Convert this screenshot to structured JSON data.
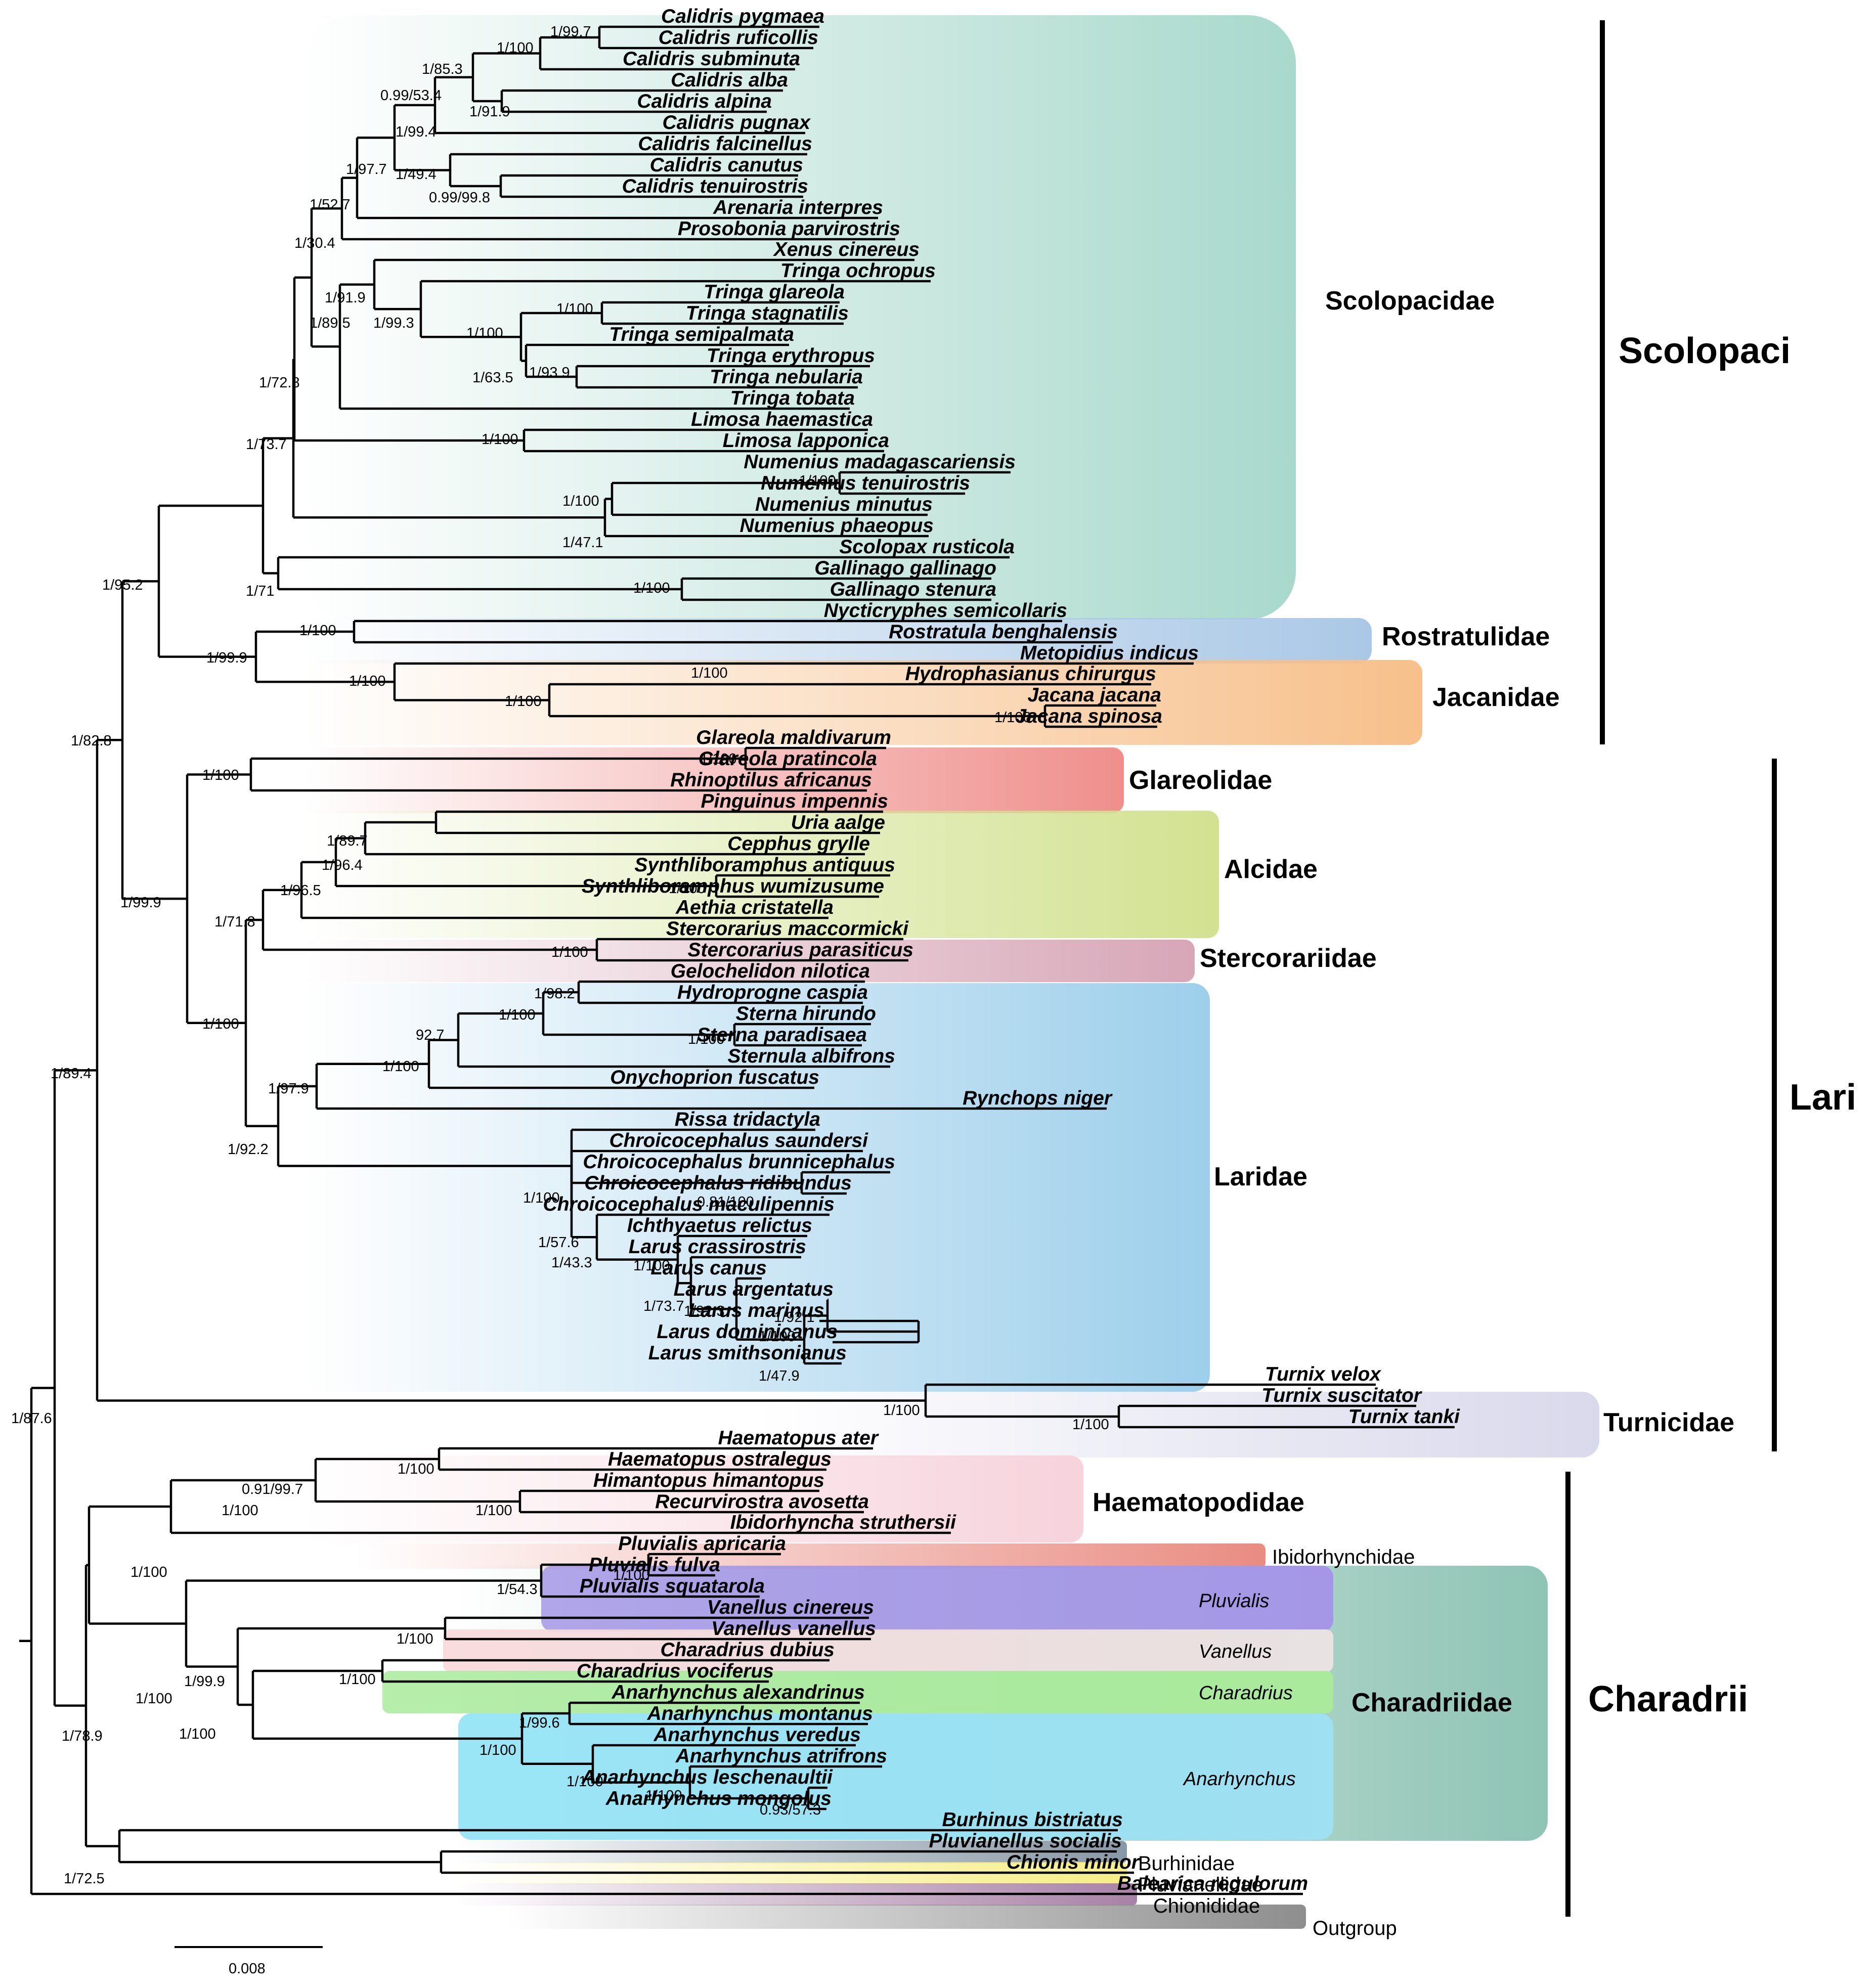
{
  "figure": {
    "scale_label": "0.008",
    "colors": {
      "scolopacidae": "#a9d9cc",
      "rostratulidae": "#aac8e6",
      "jacanidae": "#f7c08b",
      "glareolidae": "#ef8f8c",
      "alcidae": "#d2e291",
      "stercorariidae": "#d7a6b7",
      "laridae": "#9dcfeb",
      "turnicidae": "#d9d9ec",
      "haematopodidae": "#f7d3dc",
      "ibidorhynchidae": "#e98c82",
      "charadriidae": "#8fc4b4",
      "pluvialis": "#a597e6",
      "vanellus": "#f9d8da",
      "charadrius": "#a9ea9c",
      "anarhynchus": "#8fe3f6",
      "burhinidae": "#8898a6",
      "pluvianellidae": "#f6ee86",
      "chionididae": "#a882a6",
      "outgroup": "#8e8e8e",
      "highlight": "#e8211d"
    }
  },
  "taxa": [
    "Calidris pygmaea",
    "Calidris ruficollis",
    "Calidris subminuta",
    "Calidris alba",
    "Calidris alpina",
    "Calidris pugnax",
    "Calidris falcinellus",
    "Calidris canutus",
    "Calidris tenuirostris",
    "Arenaria interpres",
    "Prosobonia parvirostris",
    "Xenus cinereus",
    "Tringa ochropus",
    "Tringa glareola",
    "Tringa stagnatilis",
    "Tringa semipalmata",
    "Tringa erythropus",
    "Tringa nebularia",
    "Tringa tobata",
    "Limosa haemastica",
    "Limosa lapponica",
    "Numenius madagascariensis",
    "Numenius tenuirostris",
    "Numenius minutus",
    "Numenius phaeopus",
    "Scolopax rusticola",
    "Gallinago gallinago",
    "Gallinago stenura",
    "Nycticryphes semicollaris",
    "Rostratula benghalensis",
    "Metopidius indicus",
    "Hydrophasianus chirurgus",
    "Jacana jacana",
    "Jacana spinosa",
    "Glareola maldivarum",
    "Glareola pratincola",
    "Rhinoptilus africanus",
    "Pinguinus impennis",
    "Uria aalge",
    "Cepphus grylle",
    "Synthliboramphus antiquus",
    "Synthliboramphus wumizusume",
    "Aethia cristatella",
    "Stercorarius maccormicki",
    "Stercorarius parasiticus",
    "Gelochelidon nilotica",
    "Hydroprogne caspia",
    "Sterna hirundo",
    "Sterna paradisaea",
    "Sternula albifrons",
    "Onychoprion fuscatus",
    "Rynchops niger",
    "Rissa tridactyla",
    "Chroicocephalus saundersi",
    "Chroicocephalus brunnicephalus",
    "Chroicocephalus ridibundus",
    "Chroicocephalus maculipennis",
    "Ichthyaetus relictus",
    "Larus crassirostris",
    "Larus canus",
    "Larus argentatus",
    "Larus marinus",
    "Larus dominicanus",
    "Larus smithsonianus",
    "Turnix velox",
    "Turnix suscitator",
    "Turnix tanki",
    "Haematopus ater",
    "Haematopus ostralegus",
    "Himantopus himantopus",
    "Recurvirostra avosetta",
    "Ibidorhyncha struthersii",
    "Pluvialis apricaria",
    "Pluvialis fulva",
    "Pluvialis squatarola",
    "Vanellus cinereus",
    "Vanellus vanellus",
    "Charadrius dubius",
    "Charadrius vociferus",
    "Anarhynchus alexandrinus",
    "Anarhynchus montanus",
    "Anarhynchus veredus",
    "Anarhynchus atrifrons",
    "Anarhynchus leschenaultii",
    "Anarhynchus mongolus",
    "Burhinus bistriatus",
    "Pluvianellus socialis",
    "Chionis minor",
    "Balearica regulorum"
  ],
  "supports": [
    "1/99.7",
    "1/100",
    "1/85.3",
    "0.99/53.4",
    "1/91.9",
    "1/99.4",
    "1/49.4",
    "0.99/99.8",
    "1/97.7",
    "1/52.7",
    "1/30.4",
    "1/91.9",
    "1/99.3",
    "1/100",
    "1/100",
    "1/63.5",
    "1/93.9",
    "1/89.5",
    "1/72.8",
    "1/100",
    "1/73.7",
    "1/100",
    "1/100",
    "1/47.1",
    "1/100",
    "1/71",
    "1/100",
    "1/95.2",
    "1/100",
    "1/99.9",
    "1/100",
    "1/100",
    "1/100",
    "1/82.8",
    "1/100",
    "1/100",
    "1/99.9",
    "1/89.7",
    "1/96.4",
    "1/100",
    "1/96.5",
    "1/71.8",
    "1/100",
    "1/100",
    "1/98.2",
    "1/100",
    "92.7",
    "1/100",
    "1/100",
    "1/97.9",
    "1/100",
    "0.81/100",
    "1/57.6",
    "1/43.3",
    "1/100",
    "1/73.7",
    "1/92.3",
    "1/92.1",
    "1/100",
    "1/47.9",
    "1/92.2",
    "1/89.4",
    "1/100",
    "1/100",
    "1/87.6",
    "1/100",
    "0.91/99.7",
    "1/100",
    "1/100",
    "1/100",
    "1/100",
    "1/54.3",
    "1/100",
    "1/100",
    "1/99.9",
    "1/100",
    "1/99.6",
    "1/100",
    "1/100",
    "1/100",
    "0.93/57.3",
    "1/100",
    "1/78.9",
    "1/72.5"
  ],
  "families": [
    "Scolopacidae",
    "Rostratulidae",
    "Jacanidae",
    "Glareolidae",
    "Alcidae",
    "Stercorariidae",
    "Laridae",
    "Turnicidae",
    "Haematopodidae",
    "Charadriidae"
  ],
  "families_small": [
    "Ibidorhynchidae",
    "Burhinidae",
    "Pluvianellidae",
    "Chionididae",
    "Outgroup"
  ],
  "genera": [
    "Pluvialis",
    "Vanellus",
    "Charadrius",
    "Anarhynchus"
  ],
  "suborders": [
    "Scolopaci",
    "Lari",
    "Charadrii"
  ]
}
